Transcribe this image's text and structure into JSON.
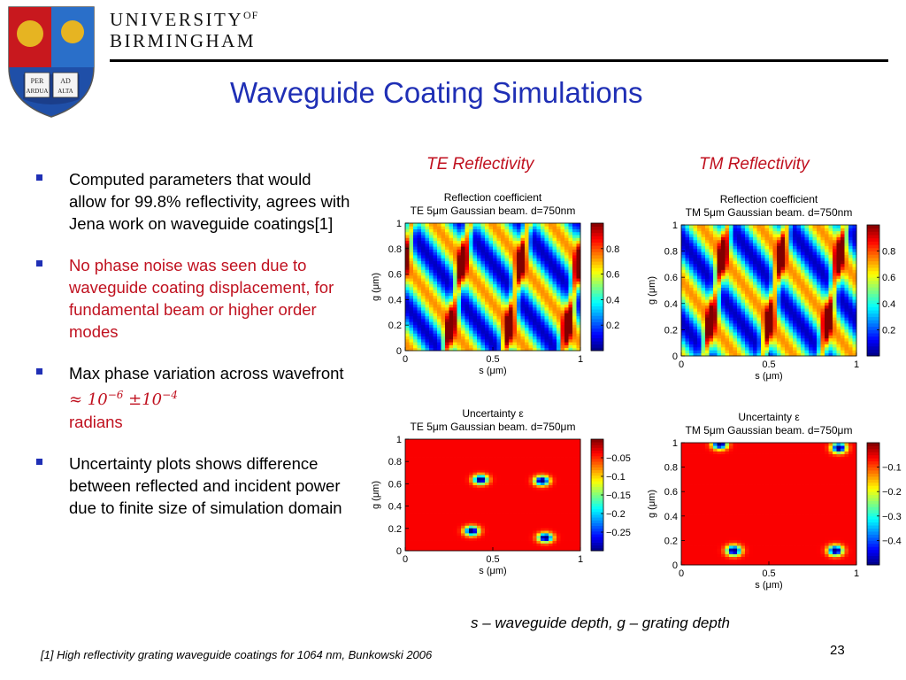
{
  "header": {
    "university_line1": "UNIVERSITY",
    "university_of": "OF",
    "university_line2": "BIRMINGHAM",
    "crest_text": [
      "PER",
      "AD",
      "ARDUA",
      "ALTA"
    ]
  },
  "title": "Waveguide Coating Simulations",
  "bullets": [
    {
      "text": "Computed parameters that would allow for 99.8% reflectivity, agrees with Jena work on waveguide coatings[1]",
      "highlight": false
    },
    {
      "text": "No phase noise was seen due to waveguide coating displacement, for fundamental beam or higher order modes",
      "highlight": true
    },
    {
      "text_before": "Max phase variation across wavefront",
      "math": "≈ 10",
      "exp1": "−6",
      "math2": " ±10",
      "exp2": "−4",
      "text_after": "radians"
    },
    {
      "text": "Uncertainty plots shows difference between reflected and incident power due to finite size of simulation domain",
      "highlight": false
    }
  ],
  "plot_labels": {
    "te": "TE Reflectivity",
    "tm": "TM Reflectivity"
  },
  "caption": "s – waveguide depth,  g – grating depth",
  "footnote": "[1] High reflectivity grating waveguide coatings for 1064 nm, Bunkowski 2006",
  "page_number": "23",
  "chart_data": [
    {
      "type": "heatmap",
      "id": "te-reflection",
      "title": "Reflection coefficient",
      "subtitle": "TE 5μm Gaussian beam. d=750nm",
      "xlabel": "s (μm)",
      "ylabel": "g (μm)",
      "xlim": [
        0,
        1
      ],
      "ylim": [
        0,
        1
      ],
      "xticks": [
        "0",
        "0.5",
        "1"
      ],
      "yticks": [
        "0",
        "0.2",
        "0.4",
        "0.6",
        "0.8",
        "1"
      ],
      "colorbar_ticks": [
        "0.2",
        "0.4",
        "0.6",
        "0.8"
      ],
      "colormap": "jet"
    },
    {
      "type": "heatmap",
      "id": "tm-reflection",
      "title": "Reflection coefficient",
      "subtitle": "TM 5μm Gaussian beam. d=750nm",
      "xlabel": "s (μm)",
      "ylabel": "g (μm)",
      "xlim": [
        0,
        1
      ],
      "ylim": [
        0,
        1
      ],
      "xticks": [
        "0",
        "0.5",
        "1"
      ],
      "yticks": [
        "0",
        "0.2",
        "0.4",
        "0.6",
        "0.8",
        "1"
      ],
      "colorbar_ticks": [
        "0.2",
        "0.4",
        "0.6",
        "0.8"
      ],
      "colormap": "jet"
    },
    {
      "type": "heatmap",
      "id": "te-uncertainty",
      "title": "Uncertainty ε",
      "subtitle": "TE 5μm Gaussian beam. d=750μm",
      "xlabel": "s (μm)",
      "ylabel": "g (μm)",
      "xlim": [
        0,
        1
      ],
      "ylim": [
        0,
        1
      ],
      "xticks": [
        "0",
        "0.5",
        "1"
      ],
      "yticks": [
        "0",
        "0.2",
        "0.4",
        "0.6",
        "0.8",
        "1"
      ],
      "colorbar_ticks": [
        "−0.25",
        "−0.2",
        "−0.15",
        "−0.1",
        "−0.05"
      ],
      "colormap": "jet"
    },
    {
      "type": "heatmap",
      "id": "tm-uncertainty",
      "title": "Uncertainty ε",
      "subtitle": "TM 5μm Gaussian beam. d=750μm",
      "xlabel": "s (μm)",
      "ylabel": "g (μm)",
      "xlim": [
        0,
        1
      ],
      "ylim": [
        0,
        1
      ],
      "xticks": [
        "0",
        "0.5",
        "1"
      ],
      "yticks": [
        "0",
        "0.2",
        "0.4",
        "0.6",
        "0.8",
        "1"
      ],
      "colorbar_ticks": [
        "−0.4",
        "−0.3",
        "−0.2",
        "−0.1"
      ],
      "colormap": "jet"
    }
  ]
}
